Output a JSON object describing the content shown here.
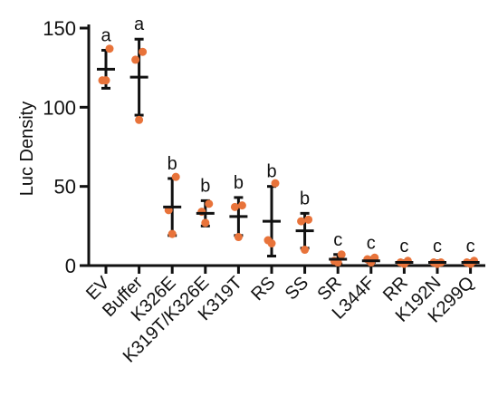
{
  "chart_data": {
    "type": "scatter",
    "title": "",
    "xlabel": "",
    "ylabel": "Luc Density",
    "ylim": [
      0,
      150
    ],
    "yticks": [
      0,
      50,
      100,
      150
    ],
    "grid": false,
    "legend": "none",
    "point_color": "#e8733a",
    "error_color": "#111111",
    "categories": [
      "EV",
      "Buffer",
      "K326E",
      "K319T/K326E",
      "K319T",
      "RS",
      "SS",
      "SR",
      "L344F",
      "RR",
      "K192N",
      "K299Q"
    ],
    "groups": [
      {
        "label": "EV",
        "letter": "a",
        "mean": 124,
        "err_low": 112,
        "err_high": 136,
        "points": [
          137,
          117,
          117
        ]
      },
      {
        "label": "Buffer",
        "letter": "a",
        "mean": 119,
        "err_low": 95,
        "err_high": 143,
        "points": [
          135,
          130,
          92
        ]
      },
      {
        "label": "K326E",
        "letter": "b",
        "mean": 37,
        "err_low": 19,
        "err_high": 55,
        "points": [
          56,
          35,
          20
        ]
      },
      {
        "label": "K319T/K326E",
        "letter": "b",
        "mean": 33,
        "err_low": 25,
        "err_high": 41,
        "points": [
          39,
          34,
          27
        ]
      },
      {
        "label": "K319T",
        "letter": "b",
        "mean": 31,
        "err_low": 19,
        "err_high": 43,
        "points": [
          38,
          37,
          18
        ]
      },
      {
        "label": "RS",
        "letter": "b",
        "mean": 28,
        "err_low": 6,
        "err_high": 50,
        "points": [
          52,
          16,
          14
        ]
      },
      {
        "label": "SS",
        "letter": "b",
        "mean": 22,
        "err_low": 11,
        "err_high": 33,
        "points": [
          29,
          28,
          10
        ]
      },
      {
        "label": "SR",
        "letter": "c",
        "mean": 4,
        "err_low": 1,
        "err_high": 7,
        "points": [
          7,
          3,
          2
        ]
      },
      {
        "label": "L344F",
        "letter": "c",
        "mean": 3,
        "err_low": 2,
        "err_high": 5,
        "points": [
          5,
          4,
          2
        ]
      },
      {
        "label": "RR",
        "letter": "c",
        "mean": 2,
        "err_low": 1,
        "err_high": 3,
        "points": [
          3,
          2,
          1
        ]
      },
      {
        "label": "K192N",
        "letter": "c",
        "mean": 2,
        "err_low": 1,
        "err_high": 3,
        "points": [
          2,
          2,
          1
        ]
      },
      {
        "label": "K299Q",
        "letter": "c",
        "mean": 2,
        "err_low": 1,
        "err_high": 3,
        "points": [
          3,
          2,
          1
        ]
      }
    ]
  }
}
